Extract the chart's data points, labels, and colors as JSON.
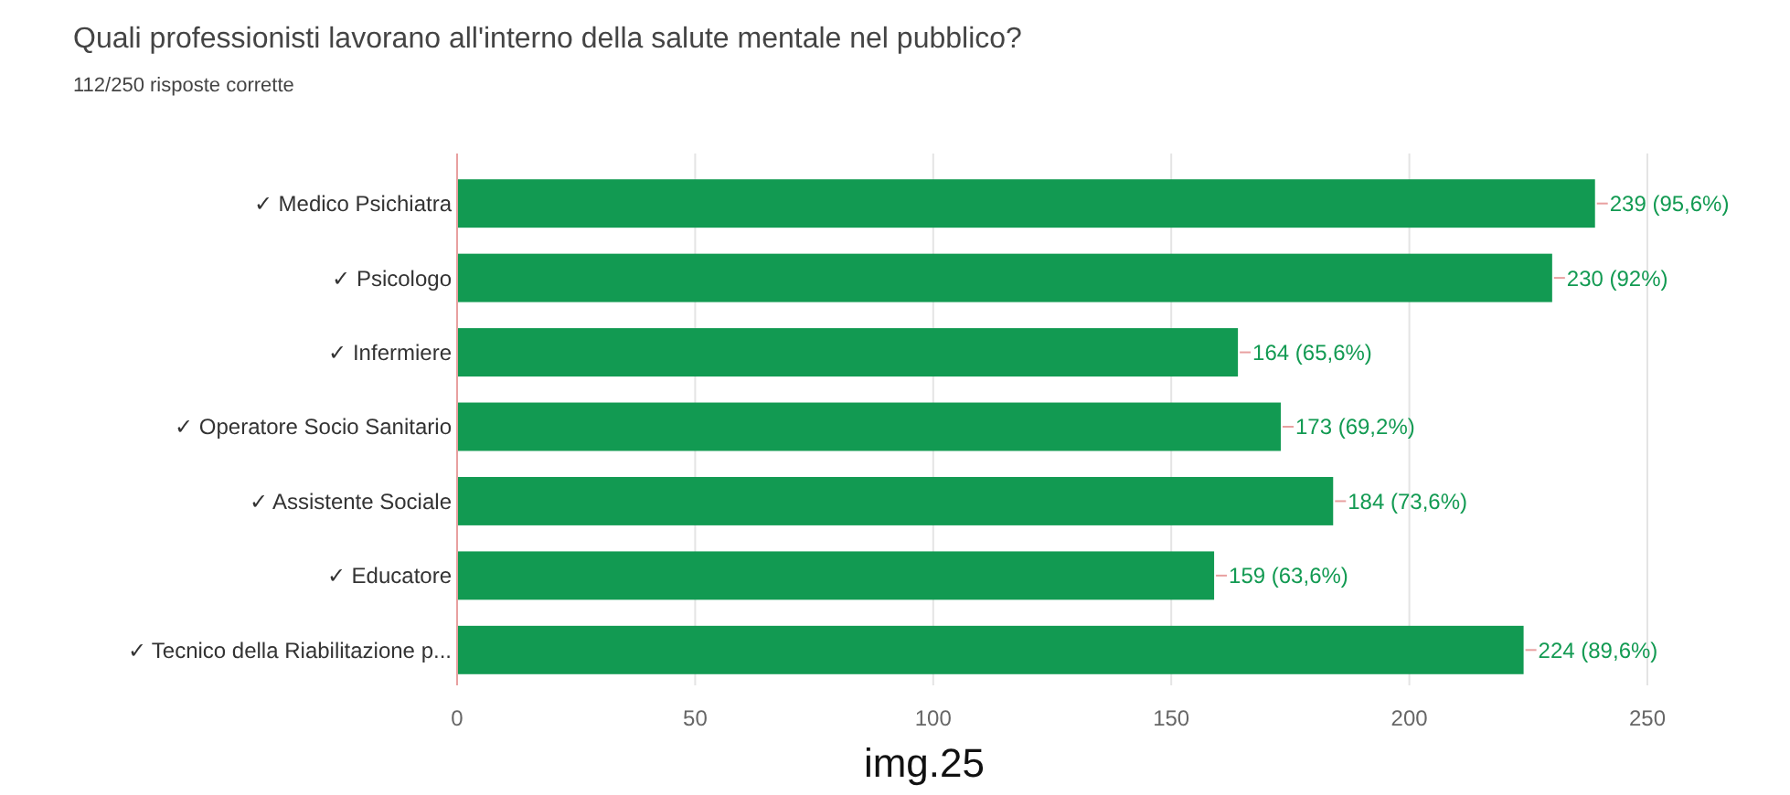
{
  "chart_data": {
    "type": "bar",
    "orientation": "horizontal",
    "title": "Quali professionisti lavorano all'interno della salute mentale nel pubblico?",
    "subtitle": "112/250 risposte corrette",
    "categories": [
      "✓ Medico Psichiatra",
      "✓ Psicologo",
      "✓ Infermiere",
      "✓ Operatore Socio Sanitario",
      "✓ Assistente Sociale",
      "✓ Educatore",
      "✓ Tecnico della Riabilitazione p..."
    ],
    "values": [
      239,
      230,
      164,
      173,
      184,
      159,
      224
    ],
    "value_labels": [
      "239 (95,6%)",
      "230 (92%)",
      "164 (65,6%)",
      "173 (69,2%)",
      "184 (73,6%)",
      "159 (63,6%)",
      "224 (89,6%)"
    ],
    "color": "#129a52",
    "xlim": [
      0,
      250
    ],
    "xticks": [
      0,
      50,
      100,
      150,
      200,
      250
    ],
    "grid": "x",
    "annotations": [
      "img.25"
    ]
  }
}
